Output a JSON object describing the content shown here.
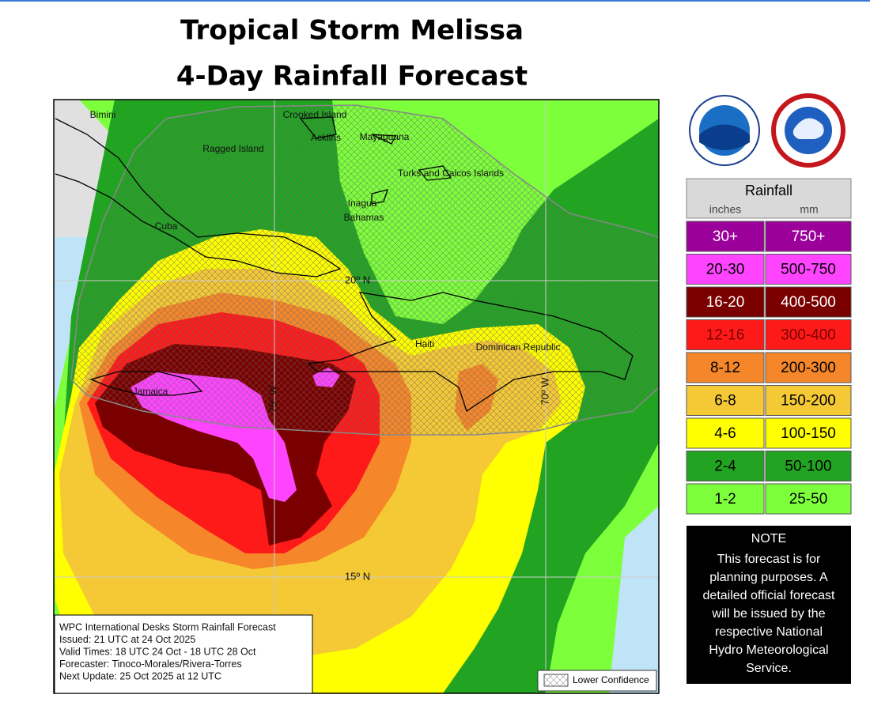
{
  "title": [
    "Tropical Storm Melissa",
    "4-Day Rainfall Forecast"
  ],
  "map": {
    "labels": [
      "Bimini",
      "Crooked Island",
      "Acklins",
      "Mayaguana",
      "Ragged Island",
      "Turks and Caicos Islands",
      "Inagua",
      "Bahamas",
      "Cuba",
      "Jamaica",
      "Haiti",
      "Dominican Republic"
    ],
    "grid_labels": [
      "20º N",
      "75º W",
      "70º W",
      "15º N"
    ]
  },
  "info_box": [
    "WPC International Desks Storm Rainfall Forecast",
    "Issued: 21 UTC at 24 Oct 2025",
    "Valid Times: 18 UTC 24 Oct - 18 UTC 28 Oct",
    "Forecaster: Tinoco-Morales/Rivera-Torres",
    "Next Update: 25 Oct 2025 at 12 UTC"
  ],
  "key": "Lower Confidence",
  "legend": {
    "title": "Rainfall",
    "units": [
      "inches",
      "mm"
    ],
    "rows": [
      [
        "30+",
        "750+"
      ],
      [
        "20-30",
        "500-750"
      ],
      [
        "16-20",
        "400-500"
      ],
      [
        "12-16",
        "300-400"
      ],
      [
        "8-12",
        "200-300"
      ],
      [
        "6-8",
        "150-200"
      ],
      [
        "4-6",
        "100-150"
      ],
      [
        "2-4",
        "50-100"
      ],
      [
        "1-2",
        "25-50"
      ]
    ]
  },
  "note": {
    "title": "NOTE",
    "lines": [
      "This forecast is for",
      "planning purposes. A",
      "detailed official forecast",
      "will be issued by the",
      "respective National",
      "Hydro Meteorological",
      "Service."
    ]
  }
}
